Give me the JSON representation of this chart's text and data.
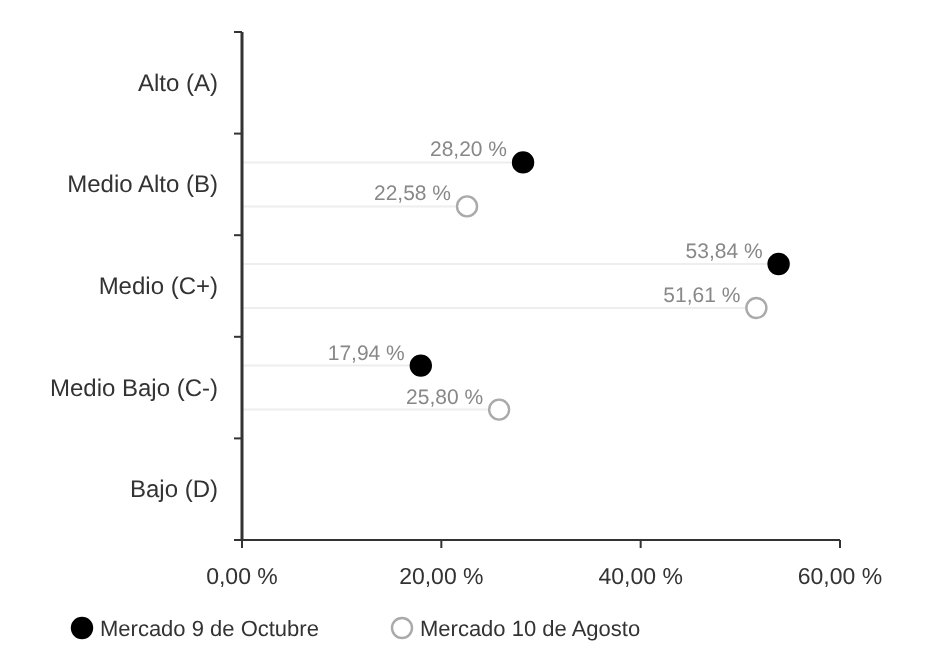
{
  "chart_data": {
    "type": "lollipop",
    "orientation": "horizontal",
    "categories": [
      "Alto (A)",
      "Medio Alto (B)",
      "Medio (C+)",
      "Medio Bajo (C-)",
      "Bajo (D)"
    ],
    "series": [
      {
        "name": "Mercado 9 de Octubre",
        "color": "#000000",
        "values": [
          null,
          28.2,
          53.84,
          17.94,
          null
        ],
        "value_labels": [
          null,
          "28,20 %",
          "53,84 %",
          "17,94 %",
          null
        ]
      },
      {
        "name": "Mercado 10 de Agosto",
        "color": "#aaaaaa",
        "values": [
          null,
          22.58,
          51.61,
          25.8,
          null
        ],
        "value_labels": [
          null,
          "22,58 %",
          "51,61 %",
          "25,80 %",
          null
        ]
      }
    ],
    "xlim": [
      0,
      60
    ],
    "xticks": [
      {
        "value": 0,
        "label": "0,00 %"
      },
      {
        "value": 20,
        "label": "20,00 %"
      },
      {
        "value": 40,
        "label": "40,00 %"
      },
      {
        "value": 60,
        "label": "60,00 %"
      }
    ],
    "marker": "circle",
    "legend": "bottom",
    "grid": false
  }
}
